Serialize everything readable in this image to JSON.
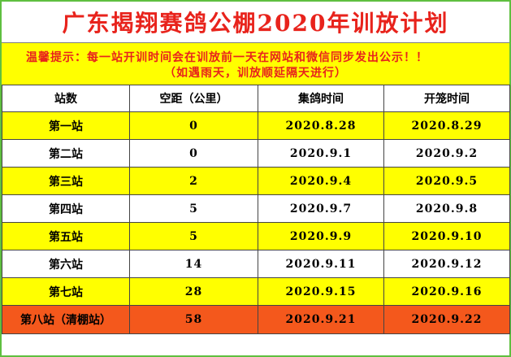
{
  "title": "广东揭翔赛鸽公棚2020年训放计划",
  "notice": {
    "line1": "温馨提示：每一站开训时间会在训放前一天在网站和微信同步发出公示！！",
    "line2": "（如遇雨天，训放顺延隔天进行）"
  },
  "table": {
    "headers": [
      "站数",
      "空距（公里）",
      "集鸽时间",
      "开笼时间"
    ],
    "rows": [
      {
        "station": "第一站",
        "distance": "0",
        "collect": "2020.8.28",
        "release": "2020.8.29",
        "highlight": "yellow"
      },
      {
        "station": "第二站",
        "distance": "0",
        "collect": "2020.9.1",
        "release": "2020.9.2",
        "highlight": "white"
      },
      {
        "station": "第三站",
        "distance": "2",
        "collect": "2020.9.4",
        "release": "2020.9.5",
        "highlight": "yellow"
      },
      {
        "station": "第四站",
        "distance": "5",
        "collect": "2020.9.7",
        "release": "2020.9.8",
        "highlight": "white"
      },
      {
        "station": "第五站",
        "distance": "5",
        "collect": "2020.9.9",
        "release": "2020.9.10",
        "highlight": "yellow"
      },
      {
        "station": "第六站",
        "distance": "14",
        "collect": "2020.9.11",
        "release": "2020.9.12",
        "highlight": "white"
      },
      {
        "station": "第七站",
        "distance": "28",
        "collect": "2020.9.15",
        "release": "2020.9.16",
        "highlight": "yellow"
      },
      {
        "station": "第八站（清棚站）",
        "distance": "58",
        "collect": "2020.9.21",
        "release": "2020.9.22",
        "highlight": "orange"
      }
    ]
  },
  "colors": {
    "title_text": "#e8231c",
    "notice_bg": "#ffff00",
    "notice_text": "#e8231c",
    "row_highlight": "#ffff00",
    "last_row": "#f4581c",
    "border_frame": "#5fbf3f"
  }
}
